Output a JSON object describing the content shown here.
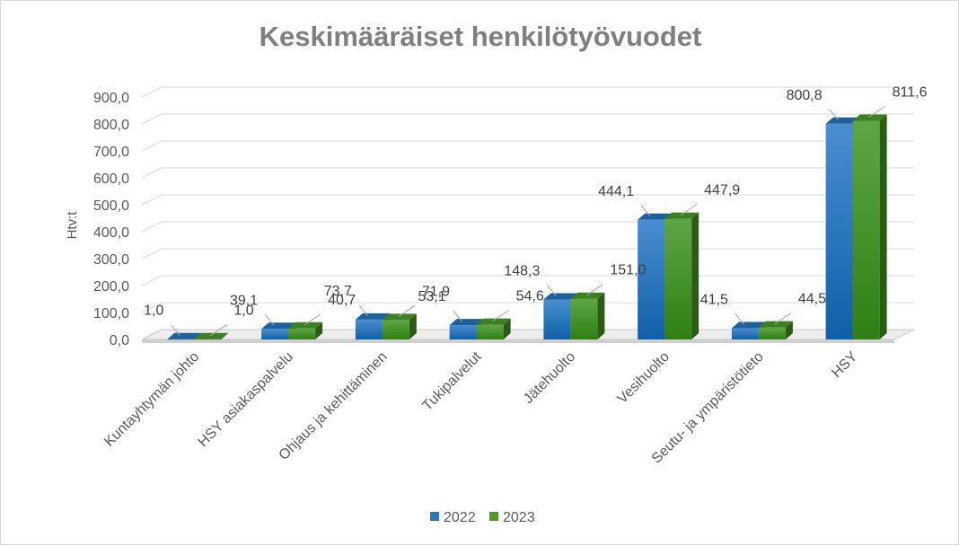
{
  "chart_data": {
    "type": "bar",
    "title": "Keskimääräiset  henkilötyövuodet",
    "ylabel": "Htv:t",
    "xlabel": "",
    "ylim": [
      0,
      900
    ],
    "ytick_step": 100,
    "grid": true,
    "legend_position": "bottom",
    "categories": [
      "Kuntayhtymän johto",
      "HSY asiakaspalvelu",
      "Ohjaus ja kehittäminen",
      "Tukipalvelut",
      "Jätehuolto",
      "Vesihuolto",
      "Seutu- ja ympäristötieto",
      "HSY"
    ],
    "series": [
      {
        "name": "2022",
        "color": "#2e75b6",
        "values": [
          1.0,
          39.1,
          73.7,
          53.1,
          148.3,
          444.1,
          41.5,
          800.8
        ],
        "labels": [
          "1,0",
          "39,1",
          "73,7",
          "53,1",
          "148,3",
          "444,1",
          "41,5",
          "800,8"
        ]
      },
      {
        "name": "2023",
        "color": "#4e9a2a",
        "values": [
          1.0,
          40.7,
          71.9,
          54.6,
          151.0,
          447.9,
          44.5,
          811.6
        ],
        "labels": [
          "1,0",
          "40,7",
          "71,9",
          "54,6",
          "151,0",
          "447,9",
          "44,5",
          "811,6"
        ]
      }
    ],
    "ytick_labels": [
      "0,0",
      "100,0",
      "200,0",
      "300,0",
      "400,0",
      "500,0",
      "600,0",
      "700,0",
      "800,0",
      "900,0"
    ]
  }
}
